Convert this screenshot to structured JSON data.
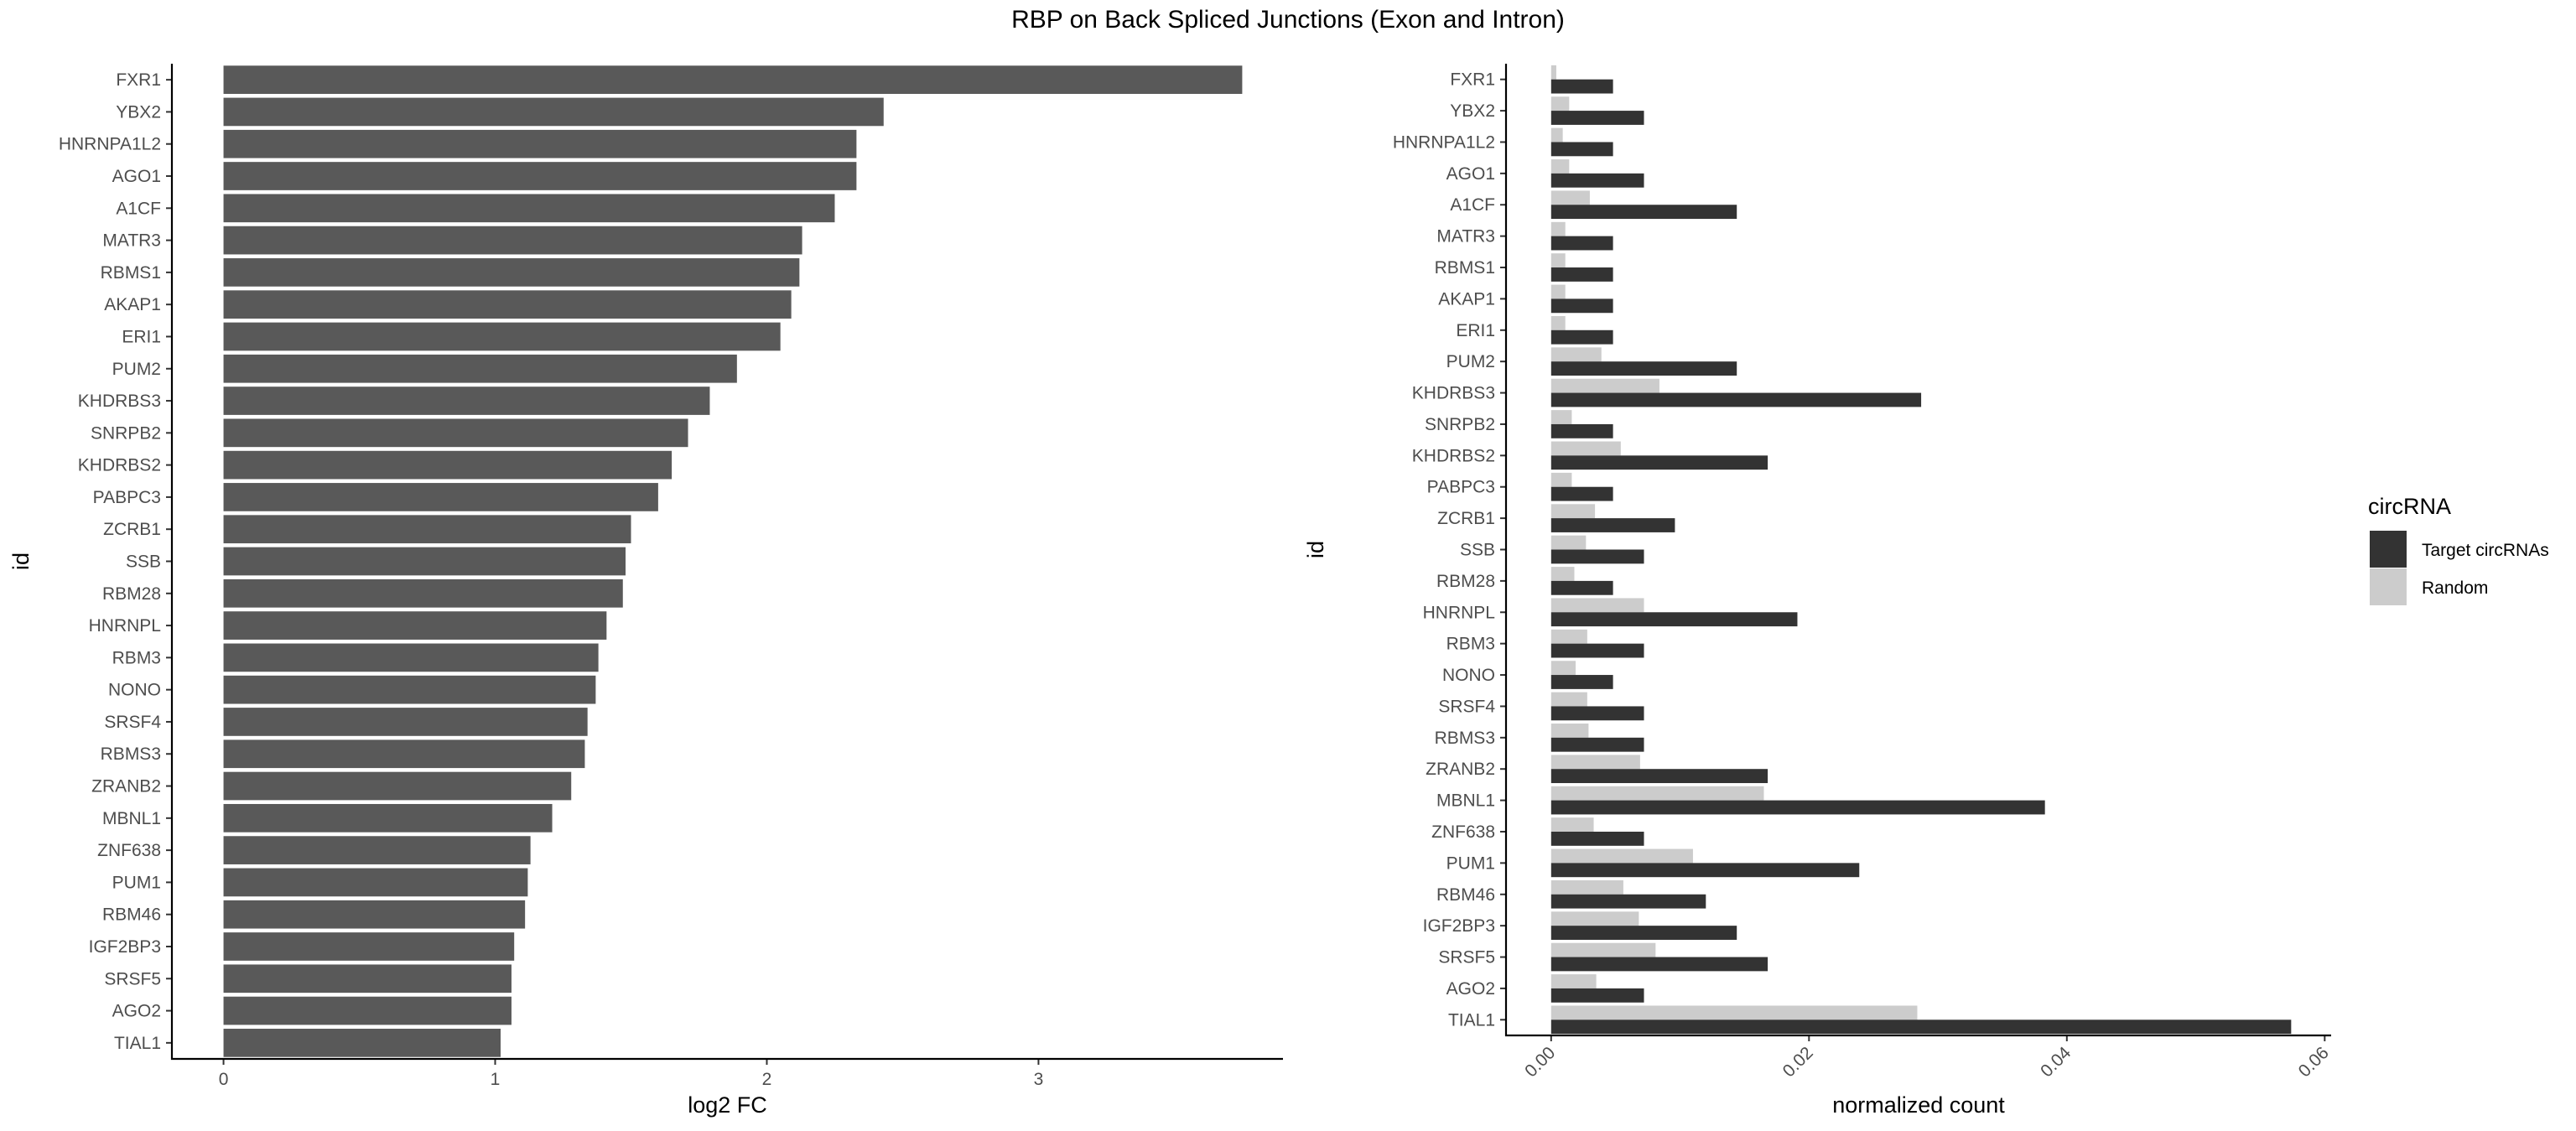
{
  "title": "RBP on Back Spliced Junctions (Exon and Intron)",
  "colors": {
    "fc_bar": "#595959",
    "target": "#333333",
    "random": "#cccccc",
    "axis": "#000000",
    "tick_text": "#4d4d4d"
  },
  "chart_data": [
    {
      "type": "bar",
      "orientation": "horizontal",
      "xlabel": "log2 FC",
      "ylabel": "id",
      "xlim": [
        -0.19,
        3.9
      ],
      "xticks": [
        0,
        1,
        2,
        3
      ],
      "xtick_labels": [
        "0",
        "1",
        "2",
        "3"
      ],
      "grid": false,
      "categories": [
        "FXR1",
        "YBX2",
        "HNRNPA1L2",
        "AGO1",
        "A1CF",
        "MATR3",
        "RBMS1",
        "AKAP1",
        "ERI1",
        "PUM2",
        "KHDRBS3",
        "SNRPB2",
        "KHDRBS2",
        "PABPC3",
        "ZCRB1",
        "SSB",
        "RBM28",
        "HNRNPL",
        "RBM3",
        "NONO",
        "SRSF4",
        "RBMS3",
        "ZRANB2",
        "MBNL1",
        "ZNF638",
        "PUM1",
        "RBM46",
        "IGF2BP3",
        "SRSF5",
        "AGO2",
        "TIAL1"
      ],
      "values": [
        3.75,
        2.43,
        2.33,
        2.33,
        2.25,
        2.13,
        2.12,
        2.09,
        2.05,
        1.89,
        1.79,
        1.71,
        1.65,
        1.6,
        1.5,
        1.48,
        1.47,
        1.41,
        1.38,
        1.37,
        1.34,
        1.33,
        1.28,
        1.21,
        1.13,
        1.12,
        1.11,
        1.07,
        1.06,
        1.06,
        1.02
      ]
    },
    {
      "type": "bar",
      "orientation": "horizontal",
      "grouped": true,
      "xlabel": "normalized count",
      "ylabel": "id",
      "xlim": [
        -0.0035,
        0.0605
      ],
      "xticks": [
        0,
        0.02,
        0.04,
        0.06
      ],
      "xtick_labels": [
        "0.00",
        "0.02",
        "0.04",
        "0.06"
      ],
      "grid": false,
      "legend": {
        "title": "circRNA",
        "position": "right",
        "entries": [
          "Target circRNAs",
          "Random"
        ]
      },
      "categories": [
        "FXR1",
        "YBX2",
        "HNRNPA1L2",
        "AGO1",
        "A1CF",
        "MATR3",
        "RBMS1",
        "AKAP1",
        "ERI1",
        "PUM2",
        "KHDRBS3",
        "SNRPB2",
        "KHDRBS2",
        "PABPC3",
        "ZCRB1",
        "SSB",
        "RBM28",
        "HNRNPL",
        "RBM3",
        "NONO",
        "SRSF4",
        "RBMS3",
        "ZRANB2",
        "MBNL1",
        "ZNF638",
        "PUM1",
        "RBM46",
        "IGF2BP3",
        "SRSF5",
        "AGO2",
        "TIAL1"
      ],
      "series": [
        {
          "name": "Target circRNAs",
          "values": [
            0.0048,
            0.0072,
            0.0048,
            0.0072,
            0.0144,
            0.0048,
            0.0048,
            0.0048,
            0.0048,
            0.0144,
            0.0287,
            0.0048,
            0.0168,
            0.0048,
            0.0096,
            0.0072,
            0.0048,
            0.0191,
            0.0072,
            0.0048,
            0.0072,
            0.0072,
            0.0168,
            0.0383,
            0.0072,
            0.0239,
            0.012,
            0.0144,
            0.0168,
            0.0072,
            0.0574
          ]
        },
        {
          "name": "Random",
          "values": [
            0.0004,
            0.0014,
            0.0009,
            0.0014,
            0.003,
            0.0011,
            0.0011,
            0.0011,
            0.0011,
            0.0039,
            0.0084,
            0.0016,
            0.0054,
            0.0016,
            0.0034,
            0.0027,
            0.0018,
            0.0072,
            0.0028,
            0.0019,
            0.0028,
            0.0029,
            0.0069,
            0.0165,
            0.0033,
            0.011,
            0.0056,
            0.0068,
            0.0081,
            0.0035,
            0.0284
          ]
        }
      ]
    }
  ]
}
